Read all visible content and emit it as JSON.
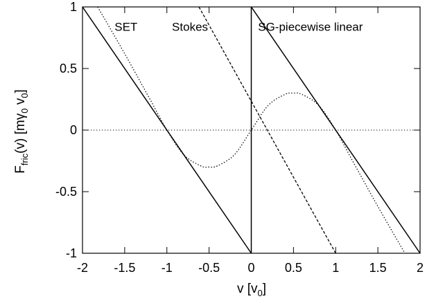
{
  "chart_data": {
    "type": "line",
    "xlim": [
      -2,
      2
    ],
    "ylim": [
      -1,
      1
    ],
    "xticks": [
      -2,
      -1.5,
      -1,
      -0.5,
      0,
      0.5,
      1,
      1.5,
      2
    ],
    "yticks": [
      -1,
      -0.5,
      0,
      0.5,
      1
    ],
    "xtick_labels": [
      "-2",
      "-1.5",
      "-1",
      "-0.5",
      "0",
      "0.5",
      "1",
      "1.5",
      "2"
    ],
    "ytick_labels": [
      "-1",
      "-0.5",
      "0",
      "0.5",
      "1"
    ],
    "xlabel": {
      "main": "v  [v",
      "sub": "0",
      "close": "]"
    },
    "ylabel": {
      "f": "F",
      "fric_sub": "fric",
      "mid": "(v)  [mγ",
      "g_sub": "0",
      "v": " v",
      "v_sub": "0",
      "close": "]"
    },
    "grid": false,
    "legend": "none",
    "zero_line": {
      "y": 0,
      "style": "dotted"
    },
    "series": [
      {
        "label": "SET",
        "style": "solid",
        "segments": [
          {
            "x": [
              -2,
              0
            ],
            "y": [
              1,
              -1
            ]
          },
          {
            "x": [
              0,
              2
            ],
            "y": [
              1,
              -1
            ]
          },
          {
            "x": [
              0,
              0
            ],
            "y": [
              -1,
              1
            ]
          }
        ]
      },
      {
        "label": "Stokes",
        "style": "dashed",
        "x": [
          -0.62,
          1.0
        ],
        "y": [
          1.0,
          -1.0
        ]
      },
      {
        "label": "SG-piecewise linear",
        "style": "dotted",
        "x": [
          -1.82,
          -1.5,
          -1.2,
          -1.0,
          -0.8,
          -0.6,
          -0.5,
          -0.4,
          -0.2,
          0.0,
          0.2,
          0.4,
          0.5,
          0.6,
          0.8,
          1.0,
          1.2,
          1.5,
          1.82
        ],
        "y": [
          1.0,
          0.62,
          0.25,
          0.0,
          -0.2,
          -0.29,
          -0.3,
          -0.29,
          -0.2,
          0.0,
          0.2,
          0.29,
          0.3,
          0.29,
          0.2,
          0.0,
          -0.25,
          -0.62,
          -1.0
        ]
      }
    ],
    "annotations": [
      {
        "text": "SET",
        "x": -1.62,
        "y": 0.84
      },
      {
        "text": "Stokes",
        "x": -0.94,
        "y": 0.84
      },
      {
        "text": "SG-piecewise linear",
        "x": 0.08,
        "y": 0.84
      }
    ]
  }
}
